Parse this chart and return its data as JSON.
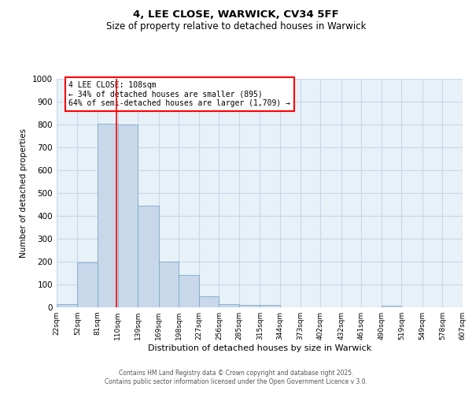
{
  "title1": "4, LEE CLOSE, WARWICK, CV34 5FF",
  "title2": "Size of property relative to detached houses in Warwick",
  "xlabel": "Distribution of detached houses by size in Warwick",
  "ylabel": "Number of detached properties",
  "bar_left_edges": [
    22,
    52,
    81,
    110,
    139,
    169,
    198,
    227,
    256,
    285,
    315,
    344,
    373,
    402,
    432,
    461,
    490,
    519,
    549,
    578
  ],
  "bar_widths": [
    30,
    29,
    29,
    29,
    30,
    29,
    29,
    29,
    29,
    30,
    29,
    29,
    29,
    30,
    29,
    29,
    29,
    30,
    29,
    29
  ],
  "bar_heights": [
    15,
    195,
    805,
    800,
    445,
    200,
    140,
    50,
    15,
    10,
    10,
    0,
    0,
    0,
    0,
    0,
    8,
    0,
    0,
    0
  ],
  "xtick_labels": [
    "22sqm",
    "52sqm",
    "81sqm",
    "110sqm",
    "139sqm",
    "169sqm",
    "198sqm",
    "227sqm",
    "256sqm",
    "285sqm",
    "315sqm",
    "344sqm",
    "373sqm",
    "402sqm",
    "432sqm",
    "461sqm",
    "490sqm",
    "519sqm",
    "549sqm",
    "578sqm",
    "607sqm"
  ],
  "xtick_positions": [
    22,
    52,
    81,
    110,
    139,
    169,
    198,
    227,
    256,
    285,
    315,
    344,
    373,
    402,
    432,
    461,
    490,
    519,
    549,
    578,
    607
  ],
  "ylim": [
    0,
    1000
  ],
  "xlim": [
    22,
    607
  ],
  "bar_color": "#c8d8ea",
  "bar_edge_color": "#7aaac8",
  "red_line_x": 108,
  "annotation_text": "4 LEE CLOSE: 108sqm\n← 34% of detached houses are smaller (895)\n64% of semi-detached houses are larger (1,709) →",
  "grid_color": "#c8d8e8",
  "background_color": "#e8f0f8",
  "footer1": "Contains HM Land Registry data © Crown copyright and database right 2025.",
  "footer2": "Contains public sector information licensed under the Open Government Licence v 3.0."
}
